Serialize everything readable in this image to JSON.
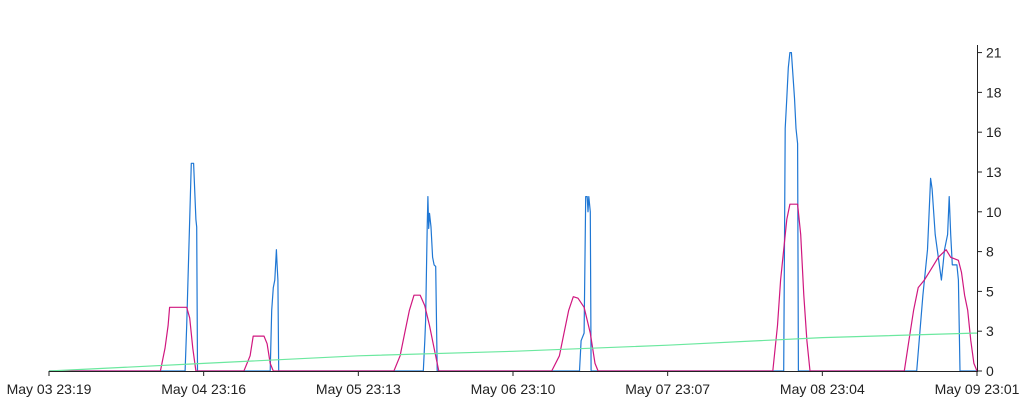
{
  "chart_data": {
    "type": "line",
    "title": "",
    "xlabel": "",
    "ylabel": "",
    "x_ticks": [
      "May 03 23:19",
      "May 04 23:16",
      "May 05 23:13",
      "May 06 23:10",
      "May 07 23:07",
      "May 08 23:04",
      "May 09 23:01"
    ],
    "y_ticks": [
      "0",
      "3",
      "5",
      "8",
      "10",
      "13",
      "16",
      "18",
      "21"
    ],
    "ylim": [
      0,
      21.5
    ],
    "xlim": [
      0,
      6
    ],
    "x_unit": "days since May 03 23:19",
    "y_axis_side": "right",
    "grid": false,
    "legend": "none",
    "series": [
      {
        "color": "#1f77d4",
        "points": [
          [
            0,
            0
          ],
          [
            0.88,
            0
          ],
          [
            0.89,
            3
          ],
          [
            0.91,
            10
          ],
          [
            0.92,
            13.7
          ],
          [
            0.935,
            13.7
          ],
          [
            0.95,
            10
          ],
          [
            0.955,
            9.5
          ],
          [
            0.96,
            0
          ],
          [
            1.43,
            0
          ],
          [
            1.44,
            4
          ],
          [
            1.45,
            5.5
          ],
          [
            1.46,
            6
          ],
          [
            1.47,
            8
          ],
          [
            1.475,
            7
          ],
          [
            1.48,
            6
          ],
          [
            1.485,
            0
          ],
          [
            2.42,
            0
          ],
          [
            2.43,
            2
          ],
          [
            2.435,
            3.3
          ],
          [
            2.445,
            9.5
          ],
          [
            2.45,
            11.5
          ],
          [
            2.455,
            9.4
          ],
          [
            2.46,
            10.4
          ],
          [
            2.47,
            9.5
          ],
          [
            2.48,
            7.5
          ],
          [
            2.49,
            7
          ],
          [
            2.5,
            6.9
          ],
          [
            2.51,
            0
          ],
          [
            3.43,
            0
          ],
          [
            3.44,
            2
          ],
          [
            3.46,
            2.5
          ],
          [
            3.47,
            11.5
          ],
          [
            3.48,
            11.5
          ],
          [
            3.485,
            10.5
          ],
          [
            3.49,
            11.5
          ],
          [
            3.5,
            10.5
          ],
          [
            3.505,
            0
          ],
          [
            4.75,
            0
          ],
          [
            4.76,
            16
          ],
          [
            4.77,
            18
          ],
          [
            4.78,
            20
          ],
          [
            4.79,
            21
          ],
          [
            4.8,
            21
          ],
          [
            4.82,
            18
          ],
          [
            4.83,
            16
          ],
          [
            4.84,
            15
          ],
          [
            4.845,
            0
          ],
          [
            5.61,
            0
          ],
          [
            5.65,
            5
          ],
          [
            5.68,
            8
          ],
          [
            5.7,
            12.7
          ],
          [
            5.71,
            12
          ],
          [
            5.73,
            9
          ],
          [
            5.75,
            7.5
          ],
          [
            5.77,
            6
          ],
          [
            5.78,
            7
          ],
          [
            5.79,
            8
          ],
          [
            5.81,
            9
          ],
          [
            5.82,
            11.5
          ],
          [
            5.83,
            9
          ],
          [
            5.84,
            7
          ],
          [
            5.87,
            7
          ],
          [
            5.88,
            6
          ],
          [
            5.885,
            3
          ],
          [
            5.89,
            0
          ],
          [
            6,
            0
          ]
        ]
      },
      {
        "color": "#d0177f",
        "points": [
          [
            0,
            0
          ],
          [
            0.72,
            0
          ],
          [
            0.75,
            1.5
          ],
          [
            0.77,
            3
          ],
          [
            0.78,
            4.2
          ],
          [
            0.89,
            4.2
          ],
          [
            0.91,
            3.5
          ],
          [
            0.93,
            1.5
          ],
          [
            0.95,
            0
          ],
          [
            1.26,
            0
          ],
          [
            1.3,
            1
          ],
          [
            1.32,
            2.3
          ],
          [
            1.39,
            2.3
          ],
          [
            1.41,
            1.8
          ],
          [
            1.43,
            0.5
          ],
          [
            1.45,
            0
          ],
          [
            2.23,
            0
          ],
          [
            2.27,
            1
          ],
          [
            2.3,
            2.5
          ],
          [
            2.33,
            4
          ],
          [
            2.36,
            5
          ],
          [
            2.4,
            5
          ],
          [
            2.43,
            4.3
          ],
          [
            2.46,
            3
          ],
          [
            2.49,
            1.5
          ],
          [
            2.52,
            0
          ],
          [
            3.25,
            0
          ],
          [
            3.3,
            1
          ],
          [
            3.33,
            2.5
          ],
          [
            3.36,
            4
          ],
          [
            3.39,
            4.9
          ],
          [
            3.42,
            4.8
          ],
          [
            3.46,
            4.2
          ],
          [
            3.5,
            2.5
          ],
          [
            3.53,
            0.5
          ],
          [
            3.55,
            0
          ],
          [
            4.68,
            0
          ],
          [
            4.71,
            3
          ],
          [
            4.73,
            6
          ],
          [
            4.75,
            8
          ],
          [
            4.77,
            10
          ],
          [
            4.79,
            11
          ],
          [
            4.84,
            11
          ],
          [
            4.86,
            9
          ],
          [
            4.88,
            5
          ],
          [
            4.9,
            2
          ],
          [
            4.92,
            0
          ],
          [
            5.53,
            0
          ],
          [
            5.56,
            2
          ],
          [
            5.59,
            4
          ],
          [
            5.62,
            5.5
          ],
          [
            5.66,
            6
          ],
          [
            5.69,
            6.5
          ],
          [
            5.72,
            7
          ],
          [
            5.75,
            7.5
          ],
          [
            5.8,
            8
          ],
          [
            5.83,
            7.5
          ],
          [
            5.88,
            7.3
          ],
          [
            5.9,
            6.5
          ],
          [
            5.92,
            5
          ],
          [
            5.94,
            4
          ],
          [
            5.96,
            2
          ],
          [
            5.98,
            0.5
          ],
          [
            6,
            0
          ]
        ]
      },
      {
        "color": "#6be89f",
        "points": [
          [
            0,
            0
          ],
          [
            1,
            0.5
          ],
          [
            2,
            1
          ],
          [
            3,
            1.3
          ],
          [
            4,
            1.7
          ],
          [
            5,
            2.2
          ],
          [
            5.98,
            2.5
          ],
          [
            6,
            2.5
          ]
        ]
      }
    ]
  }
}
